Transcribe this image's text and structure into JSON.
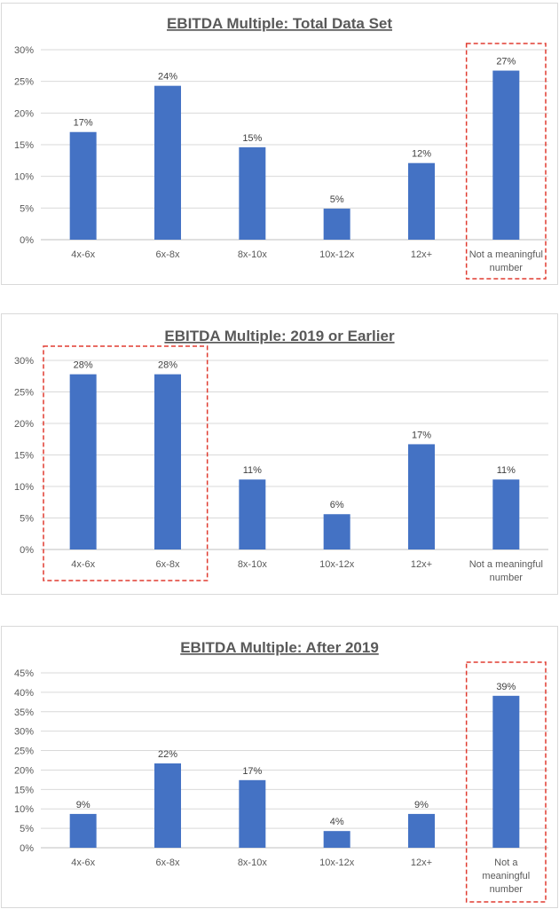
{
  "colors": {
    "bar": "#4472c4",
    "grid": "#d9d9d9",
    "highlight": "#e03c31"
  },
  "chart_data": [
    {
      "type": "bar",
      "title": "EBITDA Multiple: Total Data Set",
      "categories": [
        "4x-6x",
        "6x-8x",
        "8x-10x",
        "10x-12x",
        "12x+",
        "Not a meaningful number"
      ],
      "category_lines": [
        [
          "4x-6x"
        ],
        [
          "6x-8x"
        ],
        [
          "8x-10x"
        ],
        [
          "10x-12x"
        ],
        [
          "12x+"
        ],
        [
          "Not a meaningful",
          "number"
        ]
      ],
      "values": [
        17,
        24.3,
        14.6,
        4.9,
        12.1,
        26.7
      ],
      "data_labels": [
        "17%",
        "24%",
        "15%",
        "5%",
        "12%",
        "27%"
      ],
      "yticks": [
        "0%",
        "5%",
        "10%",
        "15%",
        "20%",
        "25%",
        "30%"
      ],
      "ylim": [
        0,
        30
      ],
      "highlight": [
        5,
        5
      ],
      "grid": true
    },
    {
      "type": "bar",
      "title": "EBITDA Multiple: 2019 or Earlier",
      "categories": [
        "4x-6x",
        "6x-8x",
        "8x-10x",
        "10x-12x",
        "12x+",
        "Not a meaningful number"
      ],
      "category_lines": [
        [
          "4x-6x"
        ],
        [
          "6x-8x"
        ],
        [
          "8x-10x"
        ],
        [
          "10x-12x"
        ],
        [
          "12x+"
        ],
        [
          "Not a meaningful",
          "number"
        ]
      ],
      "values": [
        27.8,
        27.8,
        11.1,
        5.6,
        16.7,
        11.1
      ],
      "data_labels": [
        "28%",
        "28%",
        "11%",
        "6%",
        "17%",
        "11%"
      ],
      "yticks": [
        "0%",
        "5%",
        "10%",
        "15%",
        "20%",
        "25%",
        "30%"
      ],
      "ylim": [
        0,
        30
      ],
      "highlight": [
        0,
        1
      ],
      "grid": true
    },
    {
      "type": "bar",
      "title": "EBITDA Multiple: After 2019",
      "categories": [
        "4x-6x",
        "6x-8x",
        "8x-10x",
        "10x-12x",
        "12x+",
        "Not a meaningful number"
      ],
      "category_lines": [
        [
          "4x-6x"
        ],
        [
          "6x-8x"
        ],
        [
          "8x-10x"
        ],
        [
          "10x-12x"
        ],
        [
          "12x+"
        ],
        [
          "Not a",
          "meaningful",
          "number"
        ]
      ],
      "values": [
        8.7,
        21.7,
        17.4,
        4.3,
        8.7,
        39.1
      ],
      "data_labels": [
        "9%",
        "22%",
        "17%",
        "4%",
        "9%",
        "39%"
      ],
      "yticks": [
        "0%",
        "5%",
        "10%",
        "15%",
        "20%",
        "25%",
        "30%",
        "35%",
        "40%",
        "45%"
      ],
      "ylim": [
        0,
        45
      ],
      "highlight": [
        5,
        5
      ],
      "grid": true
    }
  ]
}
